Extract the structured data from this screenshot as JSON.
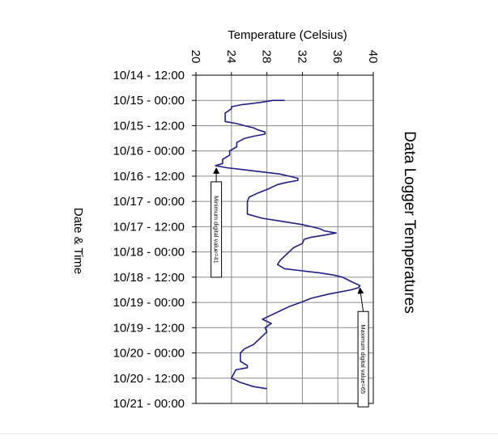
{
  "chart_data": {
    "type": "line",
    "orientation": "rotated-vertical-time",
    "title": "Data Logger Temperatures",
    "xlabel": "Temperature (Celsius)",
    "ylabel": "Date & Time",
    "xlim": [
      20,
      40
    ],
    "x_ticks": [
      "20",
      "24",
      "28",
      "32",
      "36",
      "40"
    ],
    "y_ticks": [
      "10/14 - 12:00",
      "10/15 - 00:00",
      "10/15 - 12:00",
      "10/16 - 00:00",
      "10/16 - 12:00",
      "10/17 - 00:00",
      "10/17 - 12:00",
      "10/18 - 00:00",
      "10/18 - 12:00",
      "10/19 - 00:00",
      "10/19 - 12:00",
      "10/20 - 00:00",
      "10/20 - 12:00",
      "10/21 - 00:00"
    ],
    "grid": true,
    "legend": "none",
    "line_color": "#1f1f8a",
    "series": [
      {
        "points": [
          [
            "10/15 - 00:00",
            30.0
          ],
          [
            "10/15 - 00:00",
            28.7
          ],
          [
            "10/15 - 01:00",
            27.2
          ],
          [
            "10/15 - 02:00",
            25.2
          ],
          [
            "10/15 - 03:00",
            24.0
          ],
          [
            "10/15 - 04:00",
            24.0
          ],
          [
            "10/15 - 06:00",
            23.3
          ],
          [
            "10/15 - 10:00",
            23.3
          ],
          [
            "10/15 - 11:00",
            24.6
          ],
          [
            "10/15 - 12:00",
            25.5
          ],
          [
            "10/15 - 13:00",
            26.5
          ],
          [
            "10/15 - 14:00",
            27.0
          ],
          [
            "10/15 - 15:00",
            27.8
          ],
          [
            "10/15 - 16:00",
            27.8
          ],
          [
            "10/15 - 17:00",
            26.5
          ],
          [
            "10/15 - 18:00",
            25.5
          ],
          [
            "10/15 - 20:00",
            24.6
          ],
          [
            "10/15 - 22:00",
            24.6
          ],
          [
            "10/16 - 00:00",
            23.8
          ],
          [
            "10/16 - 02:00",
            23.8
          ],
          [
            "10/16 - 04:00",
            23.0
          ],
          [
            "10/16 - 06:00",
            23.0
          ],
          [
            "10/16 - 07:00",
            22.2
          ],
          [
            "10/16 - 08:00",
            23.5
          ],
          [
            "10/16 - 09:00",
            25.5
          ],
          [
            "10/16 - 10:00",
            27.5
          ],
          [
            "10/16 - 11:00",
            29.5
          ],
          [
            "10/16 - 12:00",
            30.5
          ],
          [
            "10/16 - 13:00",
            31.5
          ],
          [
            "10/16 - 14:00",
            31.5
          ],
          [
            "10/16 - 15:00",
            30.2
          ],
          [
            "10/16 - 16:00",
            29.2
          ],
          [
            "10/16 - 18:00",
            28.2
          ],
          [
            "10/16 - 20:00",
            27.0
          ],
          [
            "10/16 - 22:00",
            26.0
          ],
          [
            "10/17 - 00:00",
            25.8
          ],
          [
            "10/17 - 06:00",
            25.8
          ],
          [
            "10/17 - 08:00",
            27.5
          ],
          [
            "10/17 - 09:00",
            29.0
          ],
          [
            "10/17 - 10:00",
            30.5
          ],
          [
            "10/17 - 11:00",
            32.0
          ],
          [
            "10/17 - 12:00",
            33.0
          ],
          [
            "10/17 - 13:00",
            34.0
          ],
          [
            "10/17 - 14:00",
            34.5
          ],
          [
            "10/17 - 15:00",
            35.8
          ],
          [
            "10/17 - 16:00",
            34.5
          ],
          [
            "10/17 - 17:00",
            33.0
          ],
          [
            "10/17 - 18:00",
            32.2
          ],
          [
            "10/17 - 20:00",
            32.0
          ],
          [
            "10/17 - 22:00",
            31.0
          ],
          [
            "10/18 - 00:00",
            30.5
          ],
          [
            "10/18 - 02:00",
            30.0
          ],
          [
            "10/18 - 04:00",
            29.5
          ],
          [
            "10/18 - 06:00",
            29.2
          ],
          [
            "10/18 - 08:00",
            30.0
          ],
          [
            "10/18 - 09:00",
            32.0
          ],
          [
            "10/18 - 10:00",
            34.0
          ],
          [
            "10/18 - 11:00",
            35.5
          ],
          [
            "10/18 - 12:00",
            36.5
          ],
          [
            "10/18 - 14:00",
            37.5
          ],
          [
            "10/18 - 16:00",
            38.5
          ],
          [
            "10/18 - 17:00",
            38.3
          ],
          [
            "10/18 - 18:00",
            37.5
          ],
          [
            "10/18 - 20:00",
            35.0
          ],
          [
            "10/18 - 22:00",
            33.0
          ],
          [
            "10/19 - 00:00",
            31.8
          ],
          [
            "10/19 - 02:00",
            30.5
          ],
          [
            "10/19 - 04:00",
            29.5
          ],
          [
            "10/19 - 06:00",
            28.5
          ],
          [
            "10/19 - 08:00",
            27.5
          ],
          [
            "10/19 - 10:00",
            28.5
          ],
          [
            "10/19 - 12:00",
            27.8
          ],
          [
            "10/19 - 14:00",
            28.0
          ],
          [
            "10/19 - 16:00",
            27.5
          ],
          [
            "10/19 - 18:00",
            27.0
          ],
          [
            "10/19 - 20:00",
            26.5
          ],
          [
            "10/19 - 22:00",
            25.5
          ],
          [
            "10/20 - 00:00",
            25.0
          ],
          [
            "10/20 - 04:00",
            25.0
          ],
          [
            "10/20 - 06:00",
            25.8
          ],
          [
            "10/20 - 07:00",
            25.8
          ],
          [
            "10/20 - 08:00",
            24.5
          ],
          [
            "10/20 - 12:00",
            24.0
          ],
          [
            "10/20 - 14:00",
            25.0
          ],
          [
            "10/20 - 16:00",
            26.5
          ],
          [
            "10/20 - 17:00",
            28.0
          ]
        ]
      }
    ],
    "annotations": [
      {
        "text": "Minimum digital value=41",
        "point": [
          "10/16 - 07:00",
          22.2
        ]
      },
      {
        "text": "Maximum digital value=65",
        "point": [
          "10/18 - 16:00",
          38.5
        ]
      }
    ]
  }
}
